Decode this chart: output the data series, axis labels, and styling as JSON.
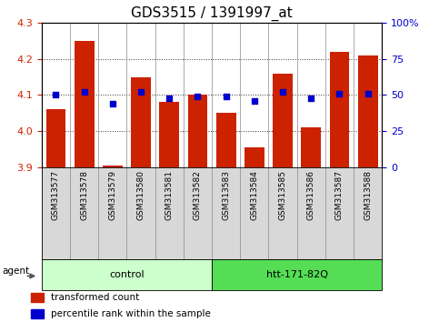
{
  "title": "GDS3515 / 1391997_at",
  "samples": [
    "GSM313577",
    "GSM313578",
    "GSM313579",
    "GSM313580",
    "GSM313581",
    "GSM313582",
    "GSM313583",
    "GSM313584",
    "GSM313585",
    "GSM313586",
    "GSM313587",
    "GSM313588"
  ],
  "red_values": [
    4.06,
    4.25,
    3.905,
    4.15,
    4.08,
    4.1,
    4.05,
    3.956,
    4.16,
    4.01,
    4.22,
    4.21
  ],
  "blue_values": [
    50,
    52,
    44,
    52,
    48,
    49,
    49,
    46,
    52,
    48,
    51,
    51
  ],
  "ylim_left": [
    3.9,
    4.3
  ],
  "ylim_right": [
    0,
    100
  ],
  "yticks_left": [
    3.9,
    4.0,
    4.1,
    4.2,
    4.3
  ],
  "yticks_right": [
    0,
    25,
    50,
    75,
    100
  ],
  "ytick_labels_right": [
    "0",
    "25",
    "50",
    "75",
    "100%"
  ],
  "bar_color": "#cc2200",
  "dot_color": "#0000cc",
  "bar_bottom": 3.9,
  "control_color": "#ccffcc",
  "htt_color": "#55dd55",
  "agent_label": "agent",
  "legend_items": [
    {
      "color": "#cc2200",
      "label": "transformed count"
    },
    {
      "color": "#0000cc",
      "label": "percentile rank within the sample"
    }
  ],
  "title_fontsize": 11,
  "tick_fontsize": 8,
  "label_color_left": "#cc2200",
  "label_color_right": "#0000cc",
  "grid_color": "#333333"
}
